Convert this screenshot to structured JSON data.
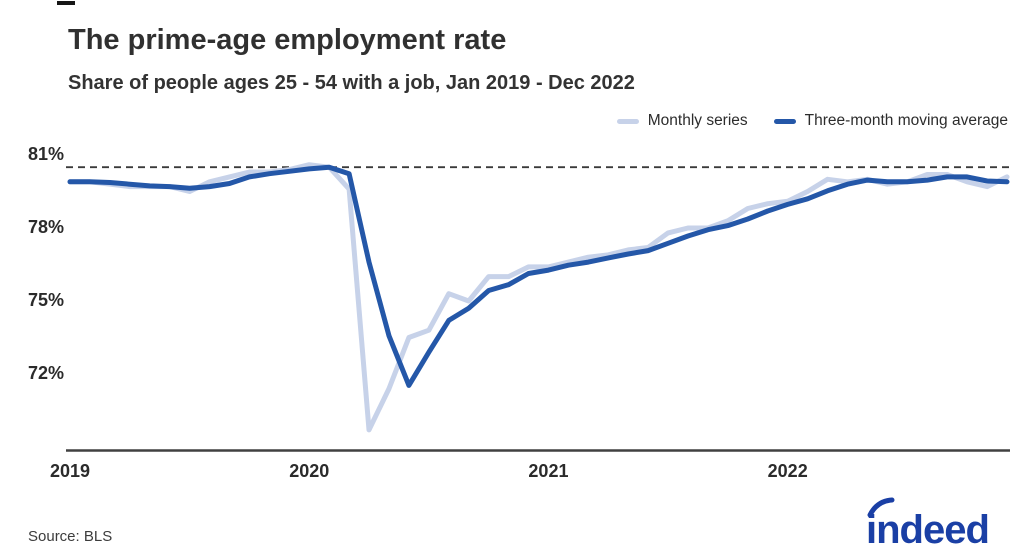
{
  "chart_data": {
    "type": "line",
    "title": "The prime-age employment rate",
    "subtitle": "Share of people ages 25 - 54 with a job, Jan 2019 - Dec 2022",
    "xlabel": "",
    "ylabel": "",
    "x_start": "Jan 2019",
    "x_end": "Dec 2022",
    "x_tick_labels": [
      "2019",
      "2020",
      "2021",
      "2022"
    ],
    "x_tick_month_index": [
      0,
      12,
      24,
      36
    ],
    "y_tick_labels": [
      "81%",
      "78%",
      "75%",
      "72%"
    ],
    "y_tick_values": [
      81,
      78,
      75,
      72
    ],
    "ylim": [
      68.9,
      81.3
    ],
    "grid": false,
    "legend_position": "top-right",
    "reference_line": {
      "value": 80.5,
      "style": "dashed",
      "color": "#3a3a3a"
    },
    "axis_color": "#414141",
    "series": [
      {
        "name": "Monthly series",
        "color": "#c7d2e9",
        "width": 5,
        "values": [
          79.9,
          79.9,
          79.8,
          79.7,
          79.7,
          79.7,
          79.5,
          79.9,
          80.1,
          80.3,
          80.3,
          80.4,
          80.6,
          80.5,
          79.6,
          69.7,
          71.4,
          73.5,
          73.8,
          75.3,
          75.0,
          76.0,
          76.0,
          76.4,
          76.4,
          76.6,
          76.8,
          76.9,
          77.1,
          77.2,
          77.8,
          78.0,
          78.0,
          78.3,
          78.8,
          79.0,
          79.1,
          79.5,
          80.0,
          79.9,
          80.0,
          79.8,
          79.9,
          80.2,
          80.2,
          79.9,
          79.7,
          80.1
        ]
      },
      {
        "name": "Three-month moving average",
        "color": "#2457a8",
        "width": 5,
        "values": [
          79.9,
          79.9,
          79.87,
          79.8,
          79.73,
          79.7,
          79.63,
          79.7,
          79.83,
          80.1,
          80.23,
          80.33,
          80.43,
          80.5,
          80.23,
          76.6,
          73.57,
          71.53,
          72.9,
          74.2,
          74.7,
          75.43,
          75.67,
          76.13,
          76.27,
          76.47,
          76.6,
          76.77,
          76.93,
          77.07,
          77.37,
          77.67,
          77.93,
          78.1,
          78.37,
          78.7,
          78.97,
          79.2,
          79.53,
          79.8,
          79.97,
          79.9,
          79.9,
          79.97,
          80.1,
          80.1,
          79.93,
          79.9
        ]
      }
    ]
  },
  "footer": {
    "source": "Source: BLS",
    "logo_text": "indeed",
    "logo_color": "#1a3fa5"
  }
}
